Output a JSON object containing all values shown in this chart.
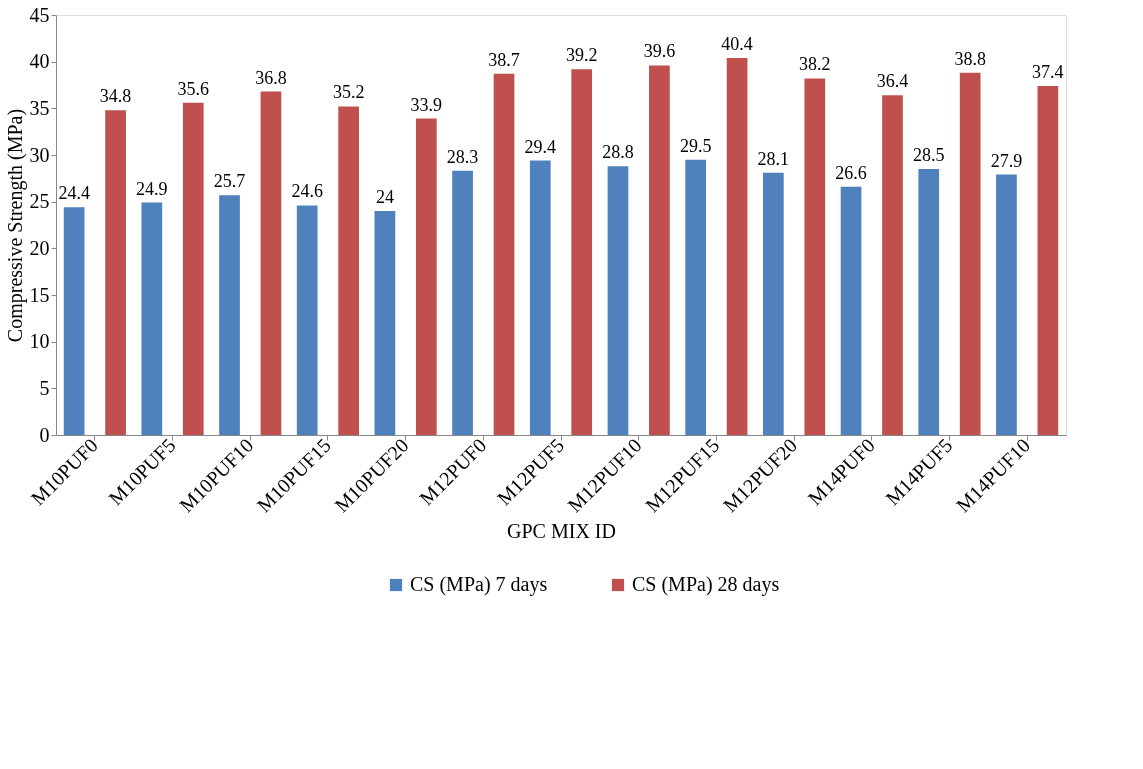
{
  "chart_data": {
    "type": "bar",
    "xlabel": "GPC MIX ID",
    "ylabel": "Compressive Strength (MPa)",
    "categories": [
      "M10PUF0",
      "M10PUF5",
      "M10PUF10",
      "M10PUF15",
      "M10PUF20",
      "M12PUF0",
      "M12PUF5",
      "M12PUF10",
      "M12PUF15",
      "M12PUF20",
      "M14PUF0",
      "M14PUF5",
      "M14PUF10"
    ],
    "series": [
      {
        "name": "CS (MPa) 7 days",
        "color": "#4f81bd",
        "values": [
          24.4,
          24.9,
          25.7,
          24.6,
          24,
          28.3,
          29.4,
          28.8,
          29.5,
          28.1,
          26.6,
          28.5,
          27.9
        ]
      },
      {
        "name": "CS (MPa) 28 days",
        "color": "#c0504d",
        "values": [
          34.8,
          35.6,
          36.8,
          35.2,
          33.9,
          38.7,
          39.2,
          39.6,
          40.4,
          38.2,
          36.4,
          38.8,
          37.4
        ]
      }
    ],
    "ylim": [
      0,
      45
    ],
    "yticks": [
      0,
      5,
      10,
      15,
      20,
      25,
      30,
      35,
      40,
      45
    ],
    "data_labels": true,
    "legend": "bottom",
    "grid": false
  }
}
